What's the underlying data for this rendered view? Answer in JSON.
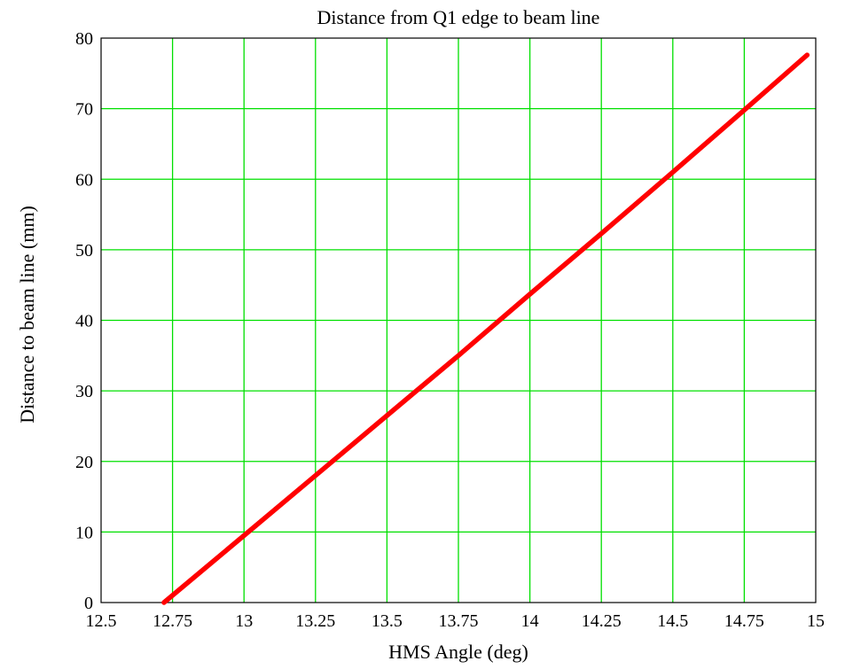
{
  "chart_data": {
    "type": "line",
    "title": "Distance from Q1 edge to beam line",
    "xlabel": "HMS Angle (deg)",
    "ylabel": "Distance to beam line (mm)",
    "xlim": [
      12.5,
      15
    ],
    "ylim": [
      0,
      80
    ],
    "x_ticks": [
      12.5,
      12.75,
      13,
      13.25,
      13.5,
      13.75,
      14,
      14.25,
      14.5,
      14.75,
      15
    ],
    "x_tick_labels": [
      "12.5",
      "12.75",
      "13",
      "13.25",
      "13.5",
      "13.75",
      "14",
      "14.25",
      "14.5",
      "14.75",
      "15"
    ],
    "y_ticks": [
      0,
      10,
      20,
      30,
      40,
      50,
      60,
      70,
      80
    ],
    "y_tick_labels": [
      "0",
      "10",
      "20",
      "30",
      "40",
      "50",
      "60",
      "70",
      "80"
    ],
    "grid": true,
    "series": [
      {
        "x": [
          12.72,
          13.0,
          13.25,
          13.5,
          13.75,
          14.0,
          14.25,
          14.5,
          14.75,
          14.97
        ],
        "y": [
          0,
          9.5,
          18.0,
          26.5,
          35.0,
          43.7,
          52.3,
          61.0,
          69.8,
          77.6
        ]
      }
    ]
  },
  "colors": {
    "grid": "#00e000",
    "line": "#ff0000",
    "axis": "#000000",
    "background": "#ffffff"
  }
}
